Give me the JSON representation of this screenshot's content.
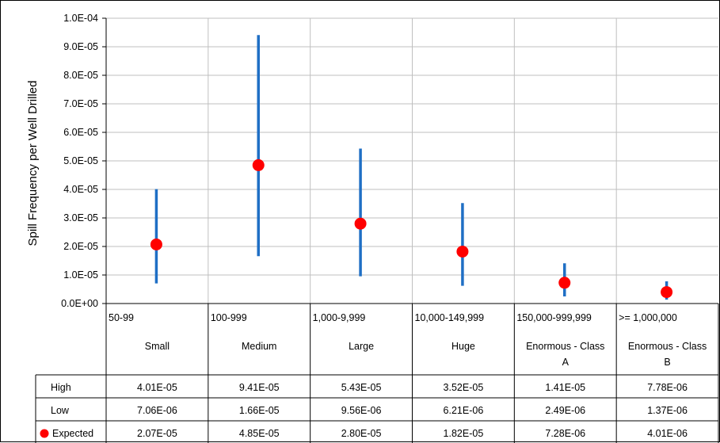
{
  "chart_data": {
    "type": "scatter",
    "ylabel": "Spill Frequency per Well Drilled",
    "ylim": [
      0,
      0.0001
    ],
    "y_ticks": [
      "0.0E+00",
      "1.0E-05",
      "2.0E-05",
      "3.0E-05",
      "4.0E-05",
      "5.0E-05",
      "6.0E-05",
      "7.0E-05",
      "8.0E-05",
      "9.0E-05",
      "1.0E-04"
    ],
    "grid": true,
    "categories": [
      {
        "range": "50-99",
        "size": [
          "Small"
        ]
      },
      {
        "range": "100-999",
        "size": [
          "Medium"
        ]
      },
      {
        "range": "1,000-9,999",
        "size": [
          "Large"
        ]
      },
      {
        "range": "10,000-149,999",
        "size": [
          "Huge"
        ]
      },
      {
        "range": "150,000-999,999",
        "size": [
          "Enormous - Class",
          "A"
        ]
      },
      {
        "range": ">= 1,000,000",
        "size": [
          "Enormous - Class",
          "B"
        ]
      }
    ],
    "series": [
      {
        "name": "High",
        "values": [
          4.01e-05,
          9.41e-05,
          5.43e-05,
          3.52e-05,
          1.41e-05,
          7.78e-06
        ],
        "labels": [
          "4.01E-05",
          "9.41E-05",
          "5.43E-05",
          "3.52E-05",
          "1.41E-05",
          "7.78E-06"
        ]
      },
      {
        "name": "Low",
        "values": [
          7.06e-06,
          1.66e-05,
          9.56e-06,
          6.21e-06,
          2.49e-06,
          1.37e-06
        ],
        "labels": [
          "7.06E-06",
          "1.66E-05",
          "9.56E-06",
          "6.21E-06",
          "2.49E-06",
          "1.37E-06"
        ]
      },
      {
        "name": "Expected",
        "values": [
          2.07e-05,
          4.85e-05,
          2.8e-05,
          1.82e-05,
          7.28e-06,
          4.01e-06
        ],
        "labels": [
          "2.07E-05",
          "4.85E-05",
          "2.80E-05",
          "1.82E-05",
          "7.28E-06",
          "4.01E-06"
        ]
      }
    ],
    "colors": {
      "range_line": "#1f6fc5",
      "expected_marker": "#ff0000",
      "grid": "#bfbfbf",
      "border": "#000000"
    }
  }
}
